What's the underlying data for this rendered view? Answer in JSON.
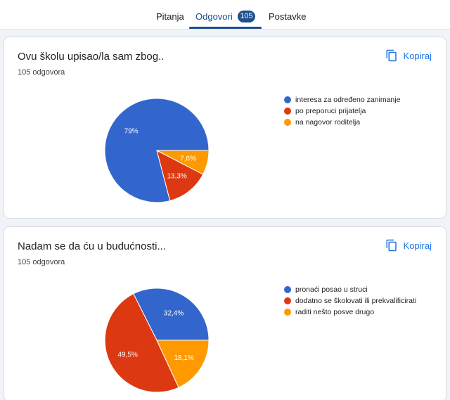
{
  "tabs": [
    {
      "label": "Pitanja"
    },
    {
      "label": "Odgovori",
      "badge": "105"
    },
    {
      "label": "Postavke"
    }
  ],
  "copy_icon": "copy-icon",
  "colors": {
    "accent": "#1f4e8c",
    "link": "#1a73e8",
    "blue": "#3366cc",
    "red": "#dc3912",
    "orange": "#ff9900"
  },
  "questions": [
    {
      "title": "Ovu školu upisao/la sam zbog..",
      "count": "105 odgovora",
      "copy_label": "Kopiraj",
      "chart_data": {
        "type": "pie",
        "labels": [
          "interesa za određeno zanimanje",
          "po preporuci prijatelja",
          "na nagovor roditelja"
        ],
        "values": [
          79,
          13.3,
          7.6
        ],
        "value_labels": [
          "79%",
          "13,3%",
          "7,6%"
        ],
        "colors": [
          "#3366cc",
          "#dc3912",
          "#ff9900"
        ],
        "legend": "right"
      }
    },
    {
      "title": "Nadam se da ću u budućnosti...",
      "count": "105 odgovora",
      "copy_label": "Kopiraj",
      "chart_data": {
        "type": "pie",
        "labels": [
          "pronaći posao u struci",
          "dodatno se školovati ili prekvalificirati",
          "raditi nešto posve drugo"
        ],
        "values": [
          32.4,
          49.5,
          18.1
        ],
        "value_labels": [
          "32,4%",
          "49,5%",
          "18,1%"
        ],
        "colors": [
          "#3366cc",
          "#dc3912",
          "#ff9900"
        ],
        "legend": "right"
      }
    }
  ]
}
